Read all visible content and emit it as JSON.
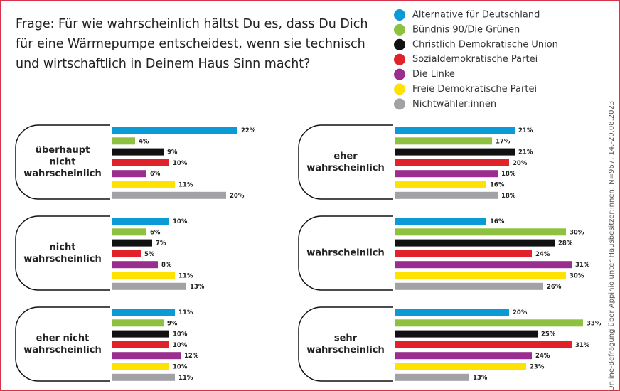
{
  "title": [
    "Frage: Für wie wahrscheinlich hältst Du es, dass Du Dich",
    "für eine Wärmepumpe entscheidest, wenn sie technisch",
    "und wirtschaftlich in Deinem Haus Sinn macht?"
  ],
  "legend": [
    {
      "name": "Alternative für Deutschland",
      "color": "#0a9ad6"
    },
    {
      "name": "Bündnis 90/Die Grünen",
      "color": "#8dc13f"
    },
    {
      "name": "Christlich Demokratische Union",
      "color": "#111111"
    },
    {
      "name": "Sozialdemokratische Partei",
      "color": "#e2222a"
    },
    {
      "name": "Die Linke",
      "color": "#9a2e8e"
    },
    {
      "name": "Freie Demokratische Partei",
      "color": "#ffe200"
    },
    {
      "name": "Nichtwähler:innen",
      "color": "#a2a2a6"
    }
  ],
  "source": "Online-Befragung über Appinio unter Hausbesitzer:innen, N=967, 14.-20.08.2023",
  "chart_data": [
    {
      "type": "bar",
      "title": [
        "überhaupt",
        "nicht",
        "wahrscheinlich"
      ],
      "values": [
        22,
        4,
        9,
        10,
        6,
        11,
        20
      ],
      "value_labels": [
        "22%",
        "4%",
        "9%",
        "10%",
        "6%",
        "11%",
        "20%"
      ]
    },
    {
      "type": "bar",
      "title": [
        "nicht",
        "wahrscheinlich"
      ],
      "values": [
        10,
        6,
        7,
        5,
        8,
        11,
        13
      ],
      "value_labels": [
        "10%",
        "6%",
        "7%",
        "5%",
        "8%",
        "11%",
        "13%"
      ]
    },
    {
      "type": "bar",
      "title": [
        "eher nicht",
        "wahrscheinlich"
      ],
      "values": [
        11,
        9,
        10,
        10,
        12,
        10,
        11
      ],
      "value_labels": [
        "11%",
        "9%",
        "10%",
        "10%",
        "12%",
        "10%",
        "11%"
      ]
    },
    {
      "type": "bar",
      "title": [
        "eher",
        "wahrscheinlich"
      ],
      "values": [
        21,
        17,
        21,
        20,
        18,
        16,
        18
      ],
      "value_labels": [
        "21%",
        "17%",
        "21%",
        "20%",
        "18%",
        "16%",
        "18%"
      ]
    },
    {
      "type": "bar",
      "title": [
        "wahrscheinlich"
      ],
      "values": [
        16,
        30,
        28,
        24,
        31,
        30,
        26
      ],
      "value_labels": [
        "16%",
        "30%",
        "28%",
        "24%",
        "31%",
        "30%",
        "26%"
      ]
    },
    {
      "type": "bar",
      "title": [
        "sehr",
        "wahrscheinlich"
      ],
      "values": [
        20,
        33,
        25,
        31,
        24,
        23,
        13
      ],
      "value_labels": [
        "20%",
        "33%",
        "25%",
        "31%",
        "24%",
        "23%",
        "13%"
      ]
    }
  ]
}
